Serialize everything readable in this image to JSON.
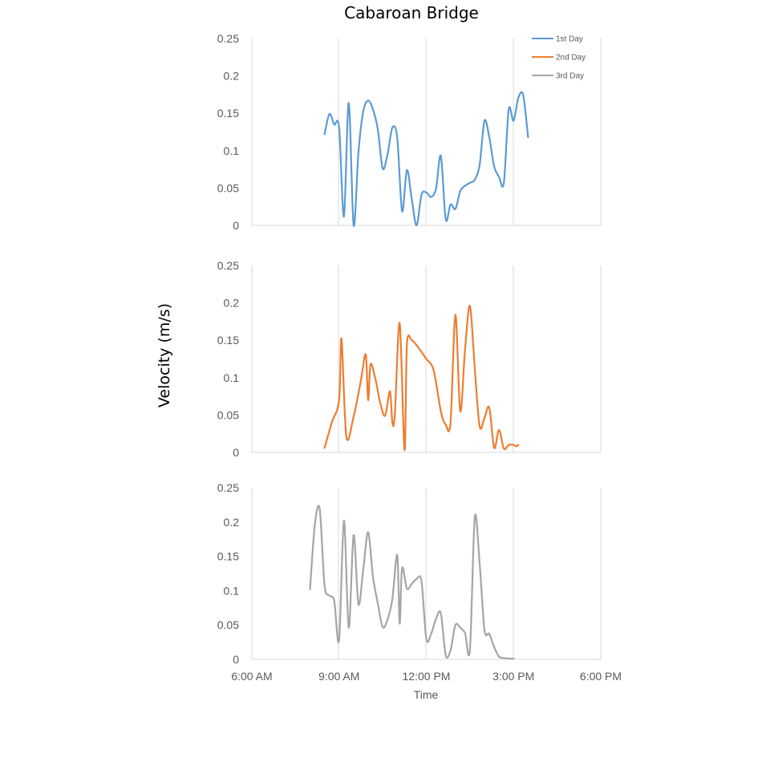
{
  "title": "Cabaroan Bridge",
  "ylabel": "Velocity (m/s)",
  "xlabel": "Time",
  "colors": {
    "1st Day": "#5B9BD5",
    "2nd Day": "#ED7D31",
    "3rd Day": "#A5A5A5",
    "grid": "#d9d9d9"
  },
  "chart_data": [
    {
      "type": "line",
      "panel": "top",
      "xlim": [
        "6:00 AM",
        "6:00 PM"
      ],
      "ylim": [
        0,
        0.25
      ],
      "yticks": [
        "0",
        "0.05",
        "0.1",
        "0.15",
        "0.2",
        "0.25"
      ],
      "legend": [
        "1st Day",
        "2nd Day",
        "3rd Day"
      ],
      "legend_position": "top-right",
      "series": [
        {
          "name": "1st Day",
          "x": [
            "8:30",
            "8:40",
            "8:50",
            "9:00",
            "9:10",
            "9:20",
            "9:30",
            "9:40",
            "9:50",
            "10:00",
            "10:10",
            "10:20",
            "10:30",
            "10:40",
            "10:50",
            "11:00",
            "11:10",
            "11:20",
            "11:30",
            "11:40",
            "11:50",
            "12:00",
            "12:10",
            "12:20",
            "12:30",
            "12:40",
            "12:50",
            "13:00",
            "13:10",
            "13:20",
            "13:30",
            "13:40",
            "13:50",
            "14:00",
            "14:10",
            "14:20",
            "14:30",
            "14:40",
            "14:50",
            "15:00",
            "15:10",
            "15:20",
            "15:30"
          ],
          "y": [
            0.122,
            0.149,
            0.135,
            0.131,
            0.012,
            0.164,
            0.0,
            0.098,
            0.153,
            0.167,
            0.155,
            0.128,
            0.076,
            0.095,
            0.131,
            0.117,
            0.019,
            0.074,
            0.035,
            0.0,
            0.041,
            0.044,
            0.038,
            0.049,
            0.093,
            0.008,
            0.028,
            0.022,
            0.046,
            0.053,
            0.057,
            0.061,
            0.081,
            0.14,
            0.118,
            0.079,
            0.065,
            0.057,
            0.155,
            0.14,
            0.171,
            0.174,
            0.118
          ]
        }
      ]
    },
    {
      "type": "line",
      "panel": "middle",
      "xlim": [
        "6:00 AM",
        "6:00 PM"
      ],
      "ylim": [
        0,
        0.25
      ],
      "yticks": [
        "0",
        "0.05",
        "0.1",
        "0.15",
        "0.2",
        "0.25"
      ],
      "series": [
        {
          "name": "2nd Day",
          "x": [
            "8:30",
            "8:45",
            "9:00",
            "9:05",
            "9:15",
            "9:30",
            "9:45",
            "9:55",
            "10:00",
            "10:05",
            "10:15",
            "10:25",
            "10:35",
            "10:45",
            "10:50",
            "10:55",
            "11:05",
            "11:15",
            "11:20",
            "11:30",
            "11:45",
            "12:00",
            "12:15",
            "12:30",
            "12:40",
            "12:50",
            "13:00",
            "13:10",
            "13:20",
            "13:30",
            "13:40",
            "13:50",
            "14:00",
            "14:10",
            "14:20",
            "14:30",
            "14:40",
            "14:50",
            "15:00",
            "15:05",
            "15:10"
          ],
          "y": [
            0.006,
            0.04,
            0.07,
            0.152,
            0.021,
            0.048,
            0.096,
            0.131,
            0.07,
            0.118,
            0.098,
            0.066,
            0.049,
            0.082,
            0.04,
            0.05,
            0.173,
            0.003,
            0.144,
            0.15,
            0.139,
            0.125,
            0.11,
            0.055,
            0.037,
            0.04,
            0.184,
            0.055,
            0.138,
            0.196,
            0.113,
            0.035,
            0.046,
            0.06,
            0.006,
            0.03,
            0.005,
            0.01,
            0.01,
            0.008,
            0.01
          ]
        }
      ]
    },
    {
      "type": "line",
      "panel": "bottom",
      "xlim": [
        "6:00 AM",
        "6:00 PM"
      ],
      "xticks": [
        "6:00 AM",
        "9:00 AM",
        "12:00 PM",
        "3:00 PM",
        "6:00 PM"
      ],
      "ylim": [
        0,
        0.25
      ],
      "yticks": [
        "0",
        "0.05",
        "0.1",
        "0.15",
        "0.2",
        "0.25"
      ],
      "xlabel": "Time",
      "series": [
        {
          "name": "3rd Day",
          "x": [
            "8:00",
            "8:10",
            "8:20",
            "8:30",
            "8:40",
            "8:50",
            "9:00",
            "9:10",
            "9:20",
            "9:30",
            "9:40",
            "9:50",
            "10:00",
            "10:10",
            "10:20",
            "10:30",
            "10:40",
            "10:50",
            "11:00",
            "11:05",
            "11:10",
            "11:20",
            "11:30",
            "11:40",
            "11:50",
            "12:00",
            "12:10",
            "12:20",
            "12:30",
            "12:40",
            "12:50",
            "13:00",
            "13:10",
            "13:20",
            "13:30",
            "13:40",
            "13:50",
            "14:00",
            "14:10",
            "14:20",
            "14:30",
            "14:40",
            "14:50",
            "15:00"
          ],
          "y": [
            0.102,
            0.196,
            0.219,
            0.108,
            0.093,
            0.085,
            0.028,
            0.202,
            0.046,
            0.181,
            0.08,
            0.132,
            0.185,
            0.12,
            0.081,
            0.047,
            0.058,
            0.088,
            0.152,
            0.052,
            0.133,
            0.103,
            0.11,
            0.117,
            0.114,
            0.03,
            0.037,
            0.059,
            0.067,
            0.006,
            0.013,
            0.05,
            0.046,
            0.038,
            0.014,
            0.207,
            0.14,
            0.043,
            0.037,
            0.018,
            0.004,
            0.002,
            0.001,
            0.001
          ]
        }
      ]
    }
  ]
}
